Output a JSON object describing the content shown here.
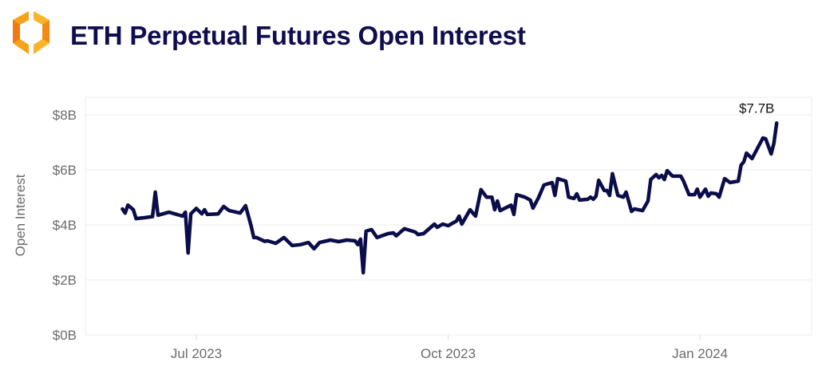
{
  "header": {
    "logo_icon": "orange-hexagon-brackets-logo",
    "title": "ETH Perpetual Futures Open Interest"
  },
  "chart_data": {
    "type": "line",
    "title": "ETH Perpetual Futures Open Interest",
    "xlabel": "",
    "ylabel": "Open Interest",
    "y_unit": "USD billions",
    "ylim": [
      0,
      8
    ],
    "xlim": [
      "2023-05-25",
      "2024-02-10"
    ],
    "yticks": [
      0,
      2,
      4,
      6,
      8
    ],
    "ytick_labels": [
      "$0B",
      "$2B",
      "$4B",
      "$6B",
      "$8B"
    ],
    "xticks": [
      "2023-07-01",
      "2023-10-01",
      "2024-01-01"
    ],
    "xtick_labels": [
      "Jul 2023",
      "Oct 2023",
      "Jan 2024"
    ],
    "grid": "horizontal",
    "line_color": "#0b0d4a",
    "annotation": {
      "date": "2024-01-29",
      "value": 7.7,
      "label": "$7.7B"
    },
    "series": [
      {
        "points": [
          [
            "2023-06-04",
            4.58
          ],
          [
            "2023-06-05",
            4.43
          ],
          [
            "2023-06-06",
            4.72
          ],
          [
            "2023-06-08",
            4.55
          ],
          [
            "2023-06-09",
            4.23
          ],
          [
            "2023-06-12",
            4.26
          ],
          [
            "2023-06-15",
            4.3
          ],
          [
            "2023-06-16",
            5.19
          ],
          [
            "2023-06-17",
            4.35
          ],
          [
            "2023-06-21",
            4.46
          ],
          [
            "2023-06-26",
            4.32
          ],
          [
            "2023-06-27",
            4.46
          ],
          [
            "2023-06-28",
            2.98
          ],
          [
            "2023-06-29",
            4.4
          ],
          [
            "2023-07-01",
            4.6
          ],
          [
            "2023-07-03",
            4.4
          ],
          [
            "2023-07-04",
            4.55
          ],
          [
            "2023-07-05",
            4.38
          ],
          [
            "2023-07-09",
            4.4
          ],
          [
            "2023-07-11",
            4.67
          ],
          [
            "2023-07-13",
            4.52
          ],
          [
            "2023-07-17",
            4.43
          ],
          [
            "2023-07-19",
            4.7
          ],
          [
            "2023-07-21",
            3.97
          ],
          [
            "2023-07-22",
            3.54
          ],
          [
            "2023-07-23",
            3.54
          ],
          [
            "2023-07-26",
            3.4
          ],
          [
            "2023-07-27",
            3.42
          ],
          [
            "2023-07-30",
            3.33
          ],
          [
            "2023-08-02",
            3.54
          ],
          [
            "2023-08-05",
            3.25
          ],
          [
            "2023-08-08",
            3.28
          ],
          [
            "2023-08-11",
            3.36
          ],
          [
            "2023-08-13",
            3.13
          ],
          [
            "2023-08-15",
            3.36
          ],
          [
            "2023-08-19",
            3.45
          ],
          [
            "2023-08-22",
            3.39
          ],
          [
            "2023-08-25",
            3.45
          ],
          [
            "2023-08-28",
            3.42
          ],
          [
            "2023-08-29",
            3.28
          ],
          [
            "2023-08-30",
            3.48
          ],
          [
            "2023-08-31",
            2.26
          ],
          [
            "2023-09-01",
            3.77
          ],
          [
            "2023-09-03",
            3.83
          ],
          [
            "2023-09-05",
            3.54
          ],
          [
            "2023-09-09",
            3.68
          ],
          [
            "2023-09-11",
            3.71
          ],
          [
            "2023-09-12",
            3.6
          ],
          [
            "2023-09-15",
            3.86
          ],
          [
            "2023-09-19",
            3.74
          ],
          [
            "2023-09-20",
            3.65
          ],
          [
            "2023-09-22",
            3.68
          ],
          [
            "2023-09-26",
            4.03
          ],
          [
            "2023-09-27",
            3.91
          ],
          [
            "2023-09-29",
            4.03
          ],
          [
            "2023-10-01",
            3.97
          ],
          [
            "2023-10-04",
            4.14
          ],
          [
            "2023-10-05",
            4.32
          ],
          [
            "2023-10-06",
            4.03
          ],
          [
            "2023-10-09",
            4.55
          ],
          [
            "2023-10-11",
            4.32
          ],
          [
            "2023-10-13",
            5.28
          ],
          [
            "2023-10-15",
            5.01
          ],
          [
            "2023-10-17",
            5.01
          ],
          [
            "2023-10-18",
            4.55
          ],
          [
            "2023-10-19",
            4.87
          ],
          [
            "2023-10-20",
            4.52
          ],
          [
            "2023-10-24",
            4.72
          ],
          [
            "2023-10-25",
            4.38
          ],
          [
            "2023-10-26",
            5.1
          ],
          [
            "2023-10-29",
            5.01
          ],
          [
            "2023-10-31",
            4.9
          ],
          [
            "2023-11-01",
            4.61
          ],
          [
            "2023-11-03",
            4.99
          ],
          [
            "2023-11-05",
            5.45
          ],
          [
            "2023-11-08",
            5.54
          ],
          [
            "2023-11-09",
            5.07
          ],
          [
            "2023-11-10",
            5.68
          ],
          [
            "2023-11-13",
            5.59
          ],
          [
            "2023-11-14",
            5.01
          ],
          [
            "2023-11-16",
            4.96
          ],
          [
            "2023-11-17",
            5.13
          ],
          [
            "2023-11-18",
            4.9
          ],
          [
            "2023-11-21",
            4.93
          ],
          [
            "2023-11-22",
            5.01
          ],
          [
            "2023-11-23",
            4.93
          ],
          [
            "2023-11-24",
            5.04
          ],
          [
            "2023-11-25",
            5.62
          ],
          [
            "2023-11-27",
            5.25
          ],
          [
            "2023-11-28",
            5.25
          ],
          [
            "2023-11-29",
            5.07
          ],
          [
            "2023-11-30",
            5.86
          ],
          [
            "2023-12-02",
            5.07
          ],
          [
            "2023-12-04",
            5.01
          ],
          [
            "2023-12-05",
            5.19
          ],
          [
            "2023-12-07",
            4.49
          ],
          [
            "2023-12-08",
            4.58
          ],
          [
            "2023-12-11",
            4.52
          ],
          [
            "2023-12-13",
            4.87
          ],
          [
            "2023-12-14",
            5.65
          ],
          [
            "2023-12-16",
            5.83
          ],
          [
            "2023-12-17",
            5.71
          ],
          [
            "2023-12-18",
            5.8
          ],
          [
            "2023-12-19",
            5.65
          ],
          [
            "2023-12-20",
            5.97
          ],
          [
            "2023-12-22",
            5.77
          ],
          [
            "2023-12-25",
            5.77
          ],
          [
            "2023-12-26",
            5.59
          ],
          [
            "2023-12-28",
            5.1
          ],
          [
            "2023-12-30",
            5.1
          ],
          [
            "2023-12-31",
            5.3
          ],
          [
            "2024-01-01",
            5.01
          ],
          [
            "2024-01-03",
            5.3
          ],
          [
            "2024-01-04",
            5.04
          ],
          [
            "2024-01-05",
            5.16
          ],
          [
            "2024-01-07",
            5.13
          ],
          [
            "2024-01-08",
            5.01
          ],
          [
            "2024-01-10",
            5.68
          ],
          [
            "2024-01-12",
            5.54
          ],
          [
            "2024-01-15",
            5.59
          ],
          [
            "2024-01-16",
            6.17
          ],
          [
            "2024-01-17",
            6.29
          ],
          [
            "2024-01-18",
            6.61
          ],
          [
            "2024-01-20",
            6.41
          ],
          [
            "2024-01-24",
            7.16
          ],
          [
            "2024-01-25",
            7.13
          ],
          [
            "2024-01-27",
            6.58
          ],
          [
            "2024-01-28",
            6.96
          ],
          [
            "2024-01-29",
            7.7
          ]
        ]
      }
    ]
  }
}
